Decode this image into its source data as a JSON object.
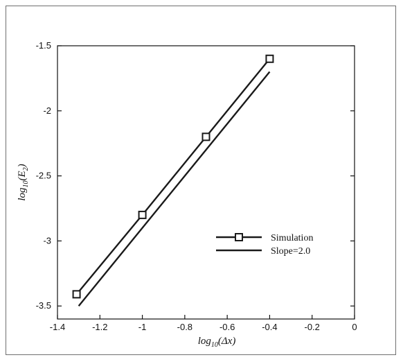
{
  "chart_data": {
    "type": "line",
    "xlabel_parts": {
      "base": "log",
      "sub": "10",
      "arg": "(Δx)"
    },
    "ylabel_parts": {
      "base": "log",
      "sub": "10",
      "arg_open": "(E",
      "arg_sub": "2",
      "arg_close": ")"
    },
    "xlim": [
      -1.4,
      0
    ],
    "ylim": [
      -3.6,
      -1.5
    ],
    "xticks": [
      -1.4,
      -1.2,
      -1.0,
      -0.8,
      -0.6,
      -0.4,
      -0.2,
      0
    ],
    "xtick_labels": [
      "-1.4",
      "-1.2",
      "-1",
      "-0.8",
      "-0.6",
      "-0.4",
      "-0.2",
      "0"
    ],
    "yticks": [
      -3.5,
      -3.0,
      -2.5,
      -2.0,
      -1.5
    ],
    "ytick_labels": [
      "-3.5",
      "-3",
      "-2.5",
      "-2",
      "-1.5"
    ],
    "grid": false,
    "legend_position": "lower-right",
    "series": [
      {
        "name": "Simulation",
        "marker": "square",
        "color": "#1a1a1a",
        "x": [
          -1.31,
          -1.0,
          -0.7,
          -0.4
        ],
        "y": [
          -3.41,
          -2.8,
          -2.2,
          -1.6
        ]
      },
      {
        "name": "Slope=2.0",
        "marker": "none",
        "color": "#1a1a1a",
        "x": [
          -1.3,
          -0.4
        ],
        "y": [
          -3.5,
          -1.7
        ]
      }
    ]
  }
}
